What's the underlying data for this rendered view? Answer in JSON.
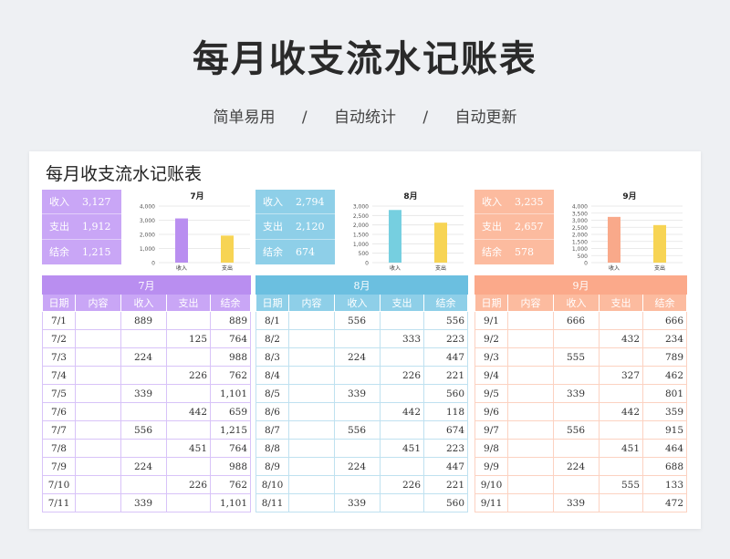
{
  "hero": {
    "title": "每月收支流水记账表",
    "tags": [
      "简单易用",
      "自动统计",
      "自动更新"
    ],
    "separator": "/"
  },
  "sheet_title": "每月收支流水记账表",
  "labels": {
    "income": "收入",
    "expense": "支出",
    "balance": "结余"
  },
  "headers": [
    "日期",
    "内容",
    "收入",
    "支出",
    "结余"
  ],
  "colors": {
    "jul": {
      "accent": "#b98ef0",
      "header": "#c9a6f6",
      "border": "#d8c3f8",
      "bar1": "#b98ef0",
      "bar2": "#f7d454"
    },
    "aug": {
      "accent": "#6bbfe0",
      "header": "#8ecfe8",
      "border": "#bfe1f0",
      "bar1": "#76cfe0",
      "bar2": "#f7d454"
    },
    "sep": {
      "accent": "#fba98a",
      "header": "#fcbb9f",
      "border": "#fcd2c1",
      "bar1": "#f9a98a",
      "bar2": "#f7d454"
    }
  },
  "months": [
    {
      "key": "jul",
      "name": "7月",
      "summary": {
        "income": "3,127",
        "expense": "1,912",
        "balance": "1,215"
      },
      "rows": [
        [
          "7/1",
          "",
          "889",
          "",
          "889"
        ],
        [
          "7/2",
          "",
          "",
          "125",
          "764"
        ],
        [
          "7/3",
          "",
          "224",
          "",
          "988"
        ],
        [
          "7/4",
          "",
          "",
          "226",
          "762"
        ],
        [
          "7/5",
          "",
          "339",
          "",
          "1,101"
        ],
        [
          "7/6",
          "",
          "",
          "442",
          "659"
        ],
        [
          "7/7",
          "",
          "556",
          "",
          "1,215"
        ],
        [
          "7/8",
          "",
          "",
          "451",
          "764"
        ],
        [
          "7/9",
          "",
          "224",
          "",
          "988"
        ],
        [
          "7/10",
          "",
          "",
          "226",
          "762"
        ],
        [
          "7/11",
          "",
          "339",
          "",
          "1,101"
        ]
      ]
    },
    {
      "key": "aug",
      "name": "8月",
      "summary": {
        "income": "2,794",
        "expense": "2,120",
        "balance": "674"
      },
      "rows": [
        [
          "8/1",
          "",
          "556",
          "",
          "556"
        ],
        [
          "8/2",
          "",
          "",
          "333",
          "223"
        ],
        [
          "8/3",
          "",
          "224",
          "",
          "447"
        ],
        [
          "8/4",
          "",
          "",
          "226",
          "221"
        ],
        [
          "8/5",
          "",
          "339",
          "",
          "560"
        ],
        [
          "8/6",
          "",
          "",
          "442",
          "118"
        ],
        [
          "8/7",
          "",
          "556",
          "",
          "674"
        ],
        [
          "8/8",
          "",
          "",
          "451",
          "223"
        ],
        [
          "8/9",
          "",
          "224",
          "",
          "447"
        ],
        [
          "8/10",
          "",
          "",
          "226",
          "221"
        ],
        [
          "8/11",
          "",
          "339",
          "",
          "560"
        ]
      ]
    },
    {
      "key": "sep",
      "name": "9月",
      "summary": {
        "income": "3,235",
        "expense": "2,657",
        "balance": "578"
      },
      "rows": [
        [
          "9/1",
          "",
          "666",
          "",
          "666"
        ],
        [
          "9/2",
          "",
          "",
          "432",
          "234"
        ],
        [
          "9/3",
          "",
          "555",
          "",
          "789"
        ],
        [
          "9/4",
          "",
          "",
          "327",
          "462"
        ],
        [
          "9/5",
          "",
          "339",
          "",
          "801"
        ],
        [
          "9/6",
          "",
          "",
          "442",
          "359"
        ],
        [
          "9/7",
          "",
          "556",
          "",
          "915"
        ],
        [
          "9/8",
          "",
          "",
          "451",
          "464"
        ],
        [
          "9/9",
          "",
          "224",
          "",
          "688"
        ],
        [
          "9/10",
          "",
          "",
          "555",
          "133"
        ],
        [
          "9/11",
          "",
          "339",
          "",
          "472"
        ]
      ]
    }
  ],
  "chart_data": [
    {
      "type": "bar",
      "title": "7月",
      "categories": [
        "收入",
        "支出"
      ],
      "values": [
        3127,
        1912
      ],
      "yticks": [
        "0",
        "1,000",
        "2,000",
        "3,000",
        "4,000"
      ],
      "ylim": [
        0,
        4000
      ],
      "grid": true
    },
    {
      "type": "bar",
      "title": "8月",
      "categories": [
        "收入",
        "支出"
      ],
      "values": [
        2794,
        2120
      ],
      "yticks": [
        "0",
        "500",
        "1,000",
        "1,500",
        "2,000",
        "2,500",
        "3,000"
      ],
      "ylim": [
        0,
        3000
      ],
      "grid": true
    },
    {
      "type": "bar",
      "title": "9月",
      "categories": [
        "收入",
        "支出"
      ],
      "values": [
        3235,
        2657
      ],
      "yticks": [
        "0",
        "500",
        "1,000",
        "1,500",
        "2,000",
        "2,500",
        "3,000",
        "3,500",
        "4,000"
      ],
      "ylim": [
        0,
        4000
      ],
      "grid": true
    }
  ]
}
